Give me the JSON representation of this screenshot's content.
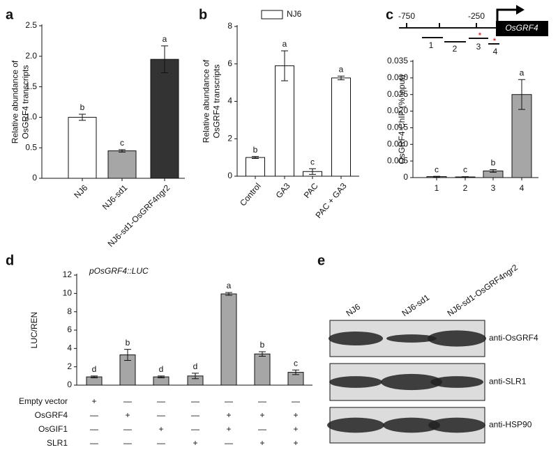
{
  "chart_data": [
    {
      "type": "bar",
      "panel": "a",
      "ylabel": [
        "Relative abundance of",
        "OsGRF4 transcripts"
      ],
      "categories": [
        "NJ6",
        "NJ6-sd1",
        "NJ6-sd1-OsGRF4ngr2"
      ],
      "values": [
        1.0,
        0.45,
        1.95
      ],
      "errors": [
        0.05,
        0.02,
        0.22
      ],
      "letters": [
        "b",
        "c",
        "a"
      ],
      "colors": [
        "#ffffff",
        "#a6a6a6",
        "#333333"
      ],
      "ylim": [
        0,
        2.5
      ],
      "yticks": [
        0,
        0.5,
        {
          "value": 1,
          "label": "1.0"
        },
        1.5,
        {
          "value": 2,
          "label": "2.0"
        },
        2.5
      ]
    },
    {
      "type": "bar",
      "panel": "b",
      "ylabel": [
        "Relative abundance of",
        "OsGRF4 transcripts"
      ],
      "legend": {
        "label": "NJ6",
        "position": "top"
      },
      "categories": [
        "Control",
        "GA3",
        "PAC",
        "PAC + GA3"
      ],
      "values": [
        1.0,
        5.9,
        0.25,
        5.25
      ],
      "errors": [
        0.05,
        0.8,
        0.15,
        0.1
      ],
      "letters": [
        "b",
        "a",
        "c",
        "a"
      ],
      "colors": [
        "#ffffff",
        "#ffffff",
        "#ffffff",
        "#ffffff"
      ],
      "ylim": [
        0,
        8
      ],
      "yticks": [
        0,
        2,
        4,
        6,
        8
      ]
    },
    {
      "type": "bar",
      "panel": "c",
      "ylabel": [
        "OsGRF4 ChIP (% input)"
      ],
      "diagram": {
        "positions": [
          "-750",
          "-250"
        ],
        "gene": "OsGRF4",
        "fragments": [
          "1",
          "2",
          "3",
          "4"
        ],
        "asterisks": [
          "*",
          "*"
        ]
      },
      "categories": [
        "1",
        "2",
        "3",
        "4"
      ],
      "values": [
        0.0003,
        0.0002,
        0.002,
        0.025
      ],
      "errors": [
        0.0001,
        0.0001,
        0.0004,
        0.0045
      ],
      "letters": [
        "c",
        "c",
        "b",
        "a"
      ],
      "colors": [
        "#a6a6a6",
        "#a6a6a6",
        "#a6a6a6",
        "#a6a6a6"
      ],
      "ylim": [
        0,
        0.035
      ],
      "yticks": [
        0,
        0.005,
        {
          "value": 0.01,
          "label": "0.010"
        },
        0.015,
        {
          "value": 0.02,
          "label": "0.020"
        },
        0.025,
        {
          "value": 0.03,
          "label": "0.030"
        },
        0.035
      ]
    },
    {
      "type": "bar",
      "panel": "d",
      "ylabel": [
        "LUC/REN"
      ],
      "subtitle": "pOsGRF4::LUC",
      "values": [
        0.9,
        3.3,
        0.9,
        1.0,
        9.95,
        3.4,
        1.4
      ],
      "errors": [
        0.1,
        0.6,
        0.1,
        0.3,
        0.15,
        0.25,
        0.25
      ],
      "letters": [
        "d",
        "b",
        "d",
        "d",
        "a",
        "b",
        "c"
      ],
      "colors": [
        "#a6a6a6",
        "#a6a6a6",
        "#a6a6a6",
        "#a6a6a6",
        "#a6a6a6",
        "#a6a6a6",
        "#a6a6a6"
      ],
      "ylim": [
        0,
        12
      ],
      "yticks": [
        0,
        2,
        4,
        6,
        8,
        10,
        12
      ],
      "conditions": {
        "row_labels": [
          "Empty vector",
          "OsGRF4",
          "OsGIF1",
          "SLR1"
        ],
        "rows": [
          [
            "+",
            "—",
            "—",
            "—",
            "—",
            "—",
            "—"
          ],
          [
            "—",
            "+",
            "—",
            "—",
            "+",
            "+",
            "+"
          ],
          [
            "—",
            "—",
            "+",
            "—",
            "+",
            "—",
            "+"
          ],
          [
            "—",
            "—",
            "—",
            "+",
            "—",
            "+",
            "+"
          ]
        ]
      }
    }
  ],
  "blot": {
    "panel": "e",
    "lanes": [
      "NJ6",
      "NJ6-sd1",
      "NJ6-sd1-OsGRF4ngr2"
    ],
    "antibodies": [
      "anti-OsGRF4",
      "anti-SLR1",
      "anti-HSP90"
    ]
  }
}
